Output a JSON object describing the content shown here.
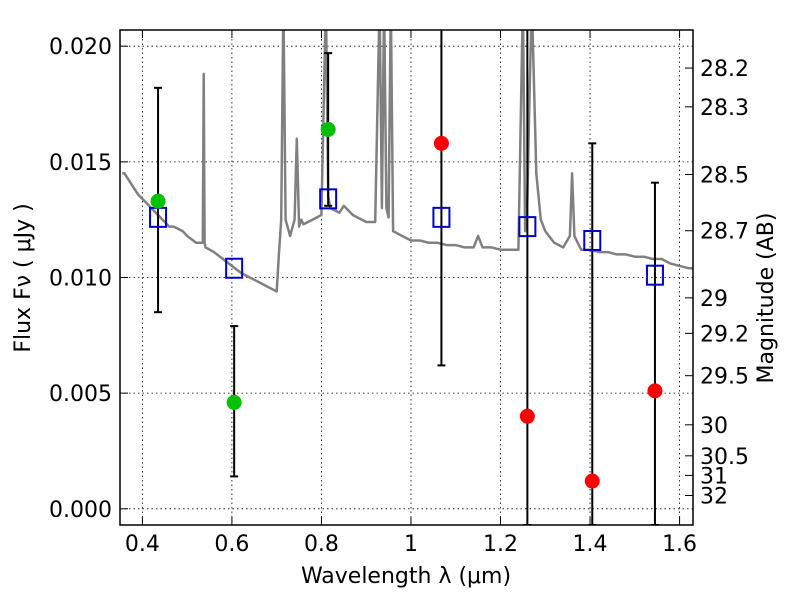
{
  "chart_data": {
    "type": "scatter",
    "xlabel": "Wavelength  λ (μm)",
    "ylabel": "Flux  Fν  ( μJy )",
    "y2label": "Magnitude (AB)",
    "xlim": [
      0.35,
      1.63
    ],
    "ylim": [
      -0.0007,
      0.0207
    ],
    "x_ticks": [
      0.4,
      0.6,
      0.8,
      1.0,
      1.2,
      1.4,
      1.6
    ],
    "x_tick_labels": [
      "0.4",
      "0.6",
      "0.8",
      "1",
      "1.2",
      "1.4",
      "1.6"
    ],
    "y_ticks": [
      0.0,
      0.005,
      0.01,
      0.015,
      0.02
    ],
    "y_tick_labels": [
      "0.000",
      "0.005",
      "0.010",
      "0.015",
      "0.020"
    ],
    "mag_ticks": [
      "28.2",
      "28.3",
      "28.5",
      "28.7",
      "29",
      "29.2",
      "29.5",
      "30",
      "30.5",
      "31",
      "32"
    ],
    "grid": true,
    "colors": {
      "model": "#808080",
      "observed": "#00c000",
      "upper_limit": "#ff0000",
      "model_photometry": "#0000cc",
      "error_bar": "#000000"
    },
    "series": [
      {
        "kind": "model_spectrum",
        "x": [
          0.355,
          0.36,
          0.37,
          0.38,
          0.39,
          0.4,
          0.41,
          0.42,
          0.43,
          0.44,
          0.45,
          0.46,
          0.47,
          0.48,
          0.49,
          0.5,
          0.52,
          0.535,
          0.537,
          0.539,
          0.541,
          0.56,
          0.58,
          0.6,
          0.62,
          0.64,
          0.66,
          0.68,
          0.69,
          0.7,
          0.705,
          0.71,
          0.715,
          0.72,
          0.73,
          0.74,
          0.745,
          0.75,
          0.755,
          0.76,
          0.78,
          0.8,
          0.81,
          0.815,
          0.82,
          0.83,
          0.84,
          0.85,
          0.86,
          0.87,
          0.88,
          0.9,
          0.92,
          0.93,
          0.935,
          0.94,
          0.945,
          0.95,
          0.955,
          0.96,
          0.98,
          1.0,
          1.02,
          1.04,
          1.06,
          1.08,
          1.1,
          1.12,
          1.14,
          1.15,
          1.16,
          1.18,
          1.2,
          1.22,
          1.24,
          1.25,
          1.255,
          1.26,
          1.265,
          1.27,
          1.28,
          1.29,
          1.3,
          1.32,
          1.34,
          1.355,
          1.36,
          1.365,
          1.38,
          1.4,
          1.42,
          1.44,
          1.46,
          1.48,
          1.5,
          1.52,
          1.54,
          1.56,
          1.58,
          1.6,
          1.62,
          1.63
        ],
        "y": [
          0.0145,
          0.0145,
          0.0142,
          0.0139,
          0.0136,
          0.0134,
          0.0132,
          0.013,
          0.0128,
          0.0126,
          0.0124,
          0.0122,
          0.0122,
          0.0121,
          0.012,
          0.0118,
          0.0115,
          0.0115,
          0.0188,
          0.0115,
          0.0113,
          0.0111,
          0.0108,
          0.0105,
          0.0102,
          0.01,
          0.0098,
          0.0096,
          0.0095,
          0.0094,
          0.011,
          0.0125,
          0.022,
          0.0125,
          0.0118,
          0.0125,
          0.016,
          0.0122,
          0.0125,
          0.0123,
          0.0125,
          0.0127,
          0.022,
          0.0135,
          0.013,
          0.0129,
          0.0128,
          0.0131,
          0.0129,
          0.0127,
          0.0126,
          0.0124,
          0.0124,
          0.022,
          0.013,
          0.022,
          0.013,
          0.0126,
          0.022,
          0.012,
          0.0118,
          0.0116,
          0.0116,
          0.0115,
          0.0115,
          0.0114,
          0.0114,
          0.0113,
          0.0113,
          0.0118,
          0.0113,
          0.0113,
          0.0112,
          0.0112,
          0.0112,
          0.022,
          0.012,
          0.0135,
          0.018,
          0.022,
          0.0145,
          0.0125,
          0.012,
          0.0115,
          0.0113,
          0.0118,
          0.0145,
          0.0118,
          0.0112,
          0.0112,
          0.0111,
          0.0111,
          0.011,
          0.011,
          0.0109,
          0.0109,
          0.0108,
          0.0108,
          0.0106,
          0.0105,
          0.0104,
          0.0104
        ]
      },
      {
        "kind": "observed",
        "x": [
          0.435,
          0.605,
          0.815
        ],
        "y": [
          0.0133,
          0.0046,
          0.0164
        ],
        "error_low": [
          0.0085,
          0.0014,
          0.0131
        ],
        "error_high": [
          0.0182,
          0.0079,
          0.0197
        ]
      },
      {
        "kind": "upper_limit",
        "x": [
          1.068,
          1.26,
          1.405,
          1.545
        ],
        "y": [
          0.0158,
          0.004,
          0.0012,
          0.0051
        ],
        "error_low": [
          0.0062,
          -0.0007,
          -0.0007,
          -0.0007
        ],
        "error_high": [
          0.0254,
          0.0254,
          0.0158,
          0.0141
        ]
      },
      {
        "kind": "model_photometry",
        "x": [
          0.435,
          0.605,
          0.815,
          1.068,
          1.26,
          1.405,
          1.545
        ],
        "y": [
          0.0126,
          0.0104,
          0.0134,
          0.0126,
          0.0122,
          0.0116,
          0.0101
        ]
      }
    ]
  }
}
